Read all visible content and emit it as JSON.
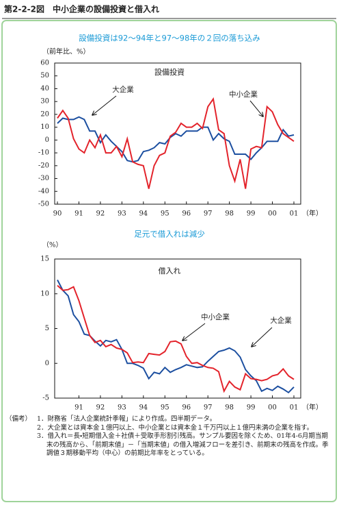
{
  "header": {
    "title": "第2-2-2図　中小企業の設備投資と借入れ"
  },
  "chart_data": [
    {
      "type": "line",
      "title": "設備投資は92～94年と97～98年の２回の落ち込み",
      "inner_title": "設備投資",
      "ylabel": "（前年比、%）",
      "xlabel": "（年）",
      "categories": [
        "90",
        null,
        null,
        null,
        "91",
        null,
        null,
        null,
        "92",
        null,
        null,
        null,
        "93",
        null,
        null,
        null,
        "94",
        null,
        null,
        null,
        "95",
        null,
        null,
        null,
        "96",
        null,
        null,
        null,
        "97",
        null,
        null,
        null,
        "98",
        null,
        null,
        null,
        "99",
        null,
        null,
        null,
        "00",
        null,
        null,
        null,
        "01"
      ],
      "series": [
        {
          "name": "大企業",
          "color": "#1c4fa0",
          "values": [
            13,
            17,
            16,
            16,
            18,
            16,
            7,
            7,
            -2,
            4,
            -1,
            -5,
            -9,
            -16,
            -17,
            -16,
            -9,
            -8,
            -6,
            -2,
            -3,
            2,
            5,
            3,
            7,
            7,
            7,
            10,
            10,
            0,
            5,
            1,
            -1,
            -11,
            -11,
            -11,
            -15,
            -10,
            -6,
            -1,
            -1,
            -1,
            8,
            3,
            4
          ]
        },
        {
          "name": "中小企業",
          "color": "#e3232b",
          "values": [
            17,
            23,
            17,
            1,
            -7,
            -10,
            0,
            -6,
            4,
            -10,
            -10,
            -5,
            -13,
            1,
            -17,
            -19,
            -20,
            -38,
            -20,
            -12,
            -10,
            3,
            6,
            13,
            10,
            10,
            13,
            9,
            26,
            32,
            8,
            5,
            -20,
            -32,
            -15,
            -38,
            -7,
            -5,
            -6,
            26,
            22,
            12,
            5,
            2,
            -1
          ]
        }
      ],
      "ylim": [
        -50,
        60
      ],
      "yticks": [
        60,
        50,
        40,
        30,
        20,
        10,
        0,
        -10,
        -20,
        -30,
        -40,
        -50
      ]
    },
    {
      "type": "line",
      "title": "足元で借入れは減少",
      "inner_title": "借入れ",
      "ylabel": "（%）",
      "xlabel": "（年）",
      "categories": [
        null,
        null,
        null,
        null,
        "91",
        null,
        null,
        null,
        "92",
        null,
        null,
        null,
        "93",
        null,
        null,
        null,
        "94",
        null,
        null,
        null,
        "95",
        null,
        null,
        null,
        "96",
        null,
        null,
        null,
        "97",
        null,
        null,
        null,
        "98",
        null,
        null,
        null,
        "99",
        null,
        null,
        null,
        "00",
        null,
        null,
        null,
        "01"
      ],
      "series": [
        {
          "name": "大企業",
          "color": "#1c4fa0",
          "values": [
            12,
            10.5,
            9.7,
            7,
            6,
            4.2,
            4,
            3.2,
            2.5,
            3.3,
            3.1,
            3.4,
            2,
            0,
            0,
            -0.3,
            -0.7,
            -2.2,
            -1.3,
            -1.5,
            -0.6,
            -1.3,
            -0.9,
            -0.6,
            -0.2,
            -0.4,
            -0.6,
            -0.5,
            0.3,
            1,
            1.7,
            1.9,
            2.2,
            1.8,
            0.9,
            -0.9,
            -1.8,
            -2.5,
            -4,
            -3.6,
            -3.9,
            -3.3,
            -3.7,
            -4.2,
            -3.4
          ]
        },
        {
          "name": "中小企業",
          "color": "#e3232b",
          "values": [
            11.2,
            10.5,
            10.6,
            11,
            9,
            6.5,
            4,
            3,
            3.3,
            2.4,
            2.7,
            2.2,
            2,
            1.5,
            0.1,
            0.2,
            0.1,
            1.4,
            1.3,
            1.2,
            1.7,
            3.1,
            3.2,
            2.8,
            1,
            0,
            0.1,
            -0.3,
            -0.6,
            -0.7,
            -1.2,
            -4,
            -2.6,
            -3.4,
            -3.8,
            -1.5,
            -2.2,
            -2.3,
            -2.5,
            -2.3,
            -1.8,
            -1.6,
            -0.8,
            -1.8,
            -2.3
          ]
        }
      ],
      "ylim": [
        -5,
        15
      ],
      "yticks": [
        15,
        10,
        5,
        0,
        -5
      ]
    }
  ],
  "notes": {
    "label": "（備考）",
    "items": [
      "1．財務省「法人企業統計季報」により作成。四半期データ。",
      "2．大企業とは資本金１億円以上、中小企業とは資本金１千万円以上１億円未満の企業を指す。",
      "3．借入れ＝長・短期借入金＋社債＋受取手形割引残高。サンプル要因を除くため、01年4-6月期当期末の残高から、「前期末値」－「当期末値」の借入増減フローを差引き、前期末の残高を作成。季調値３期移動平均（中心）の前期比年率をとっている。"
    ]
  }
}
